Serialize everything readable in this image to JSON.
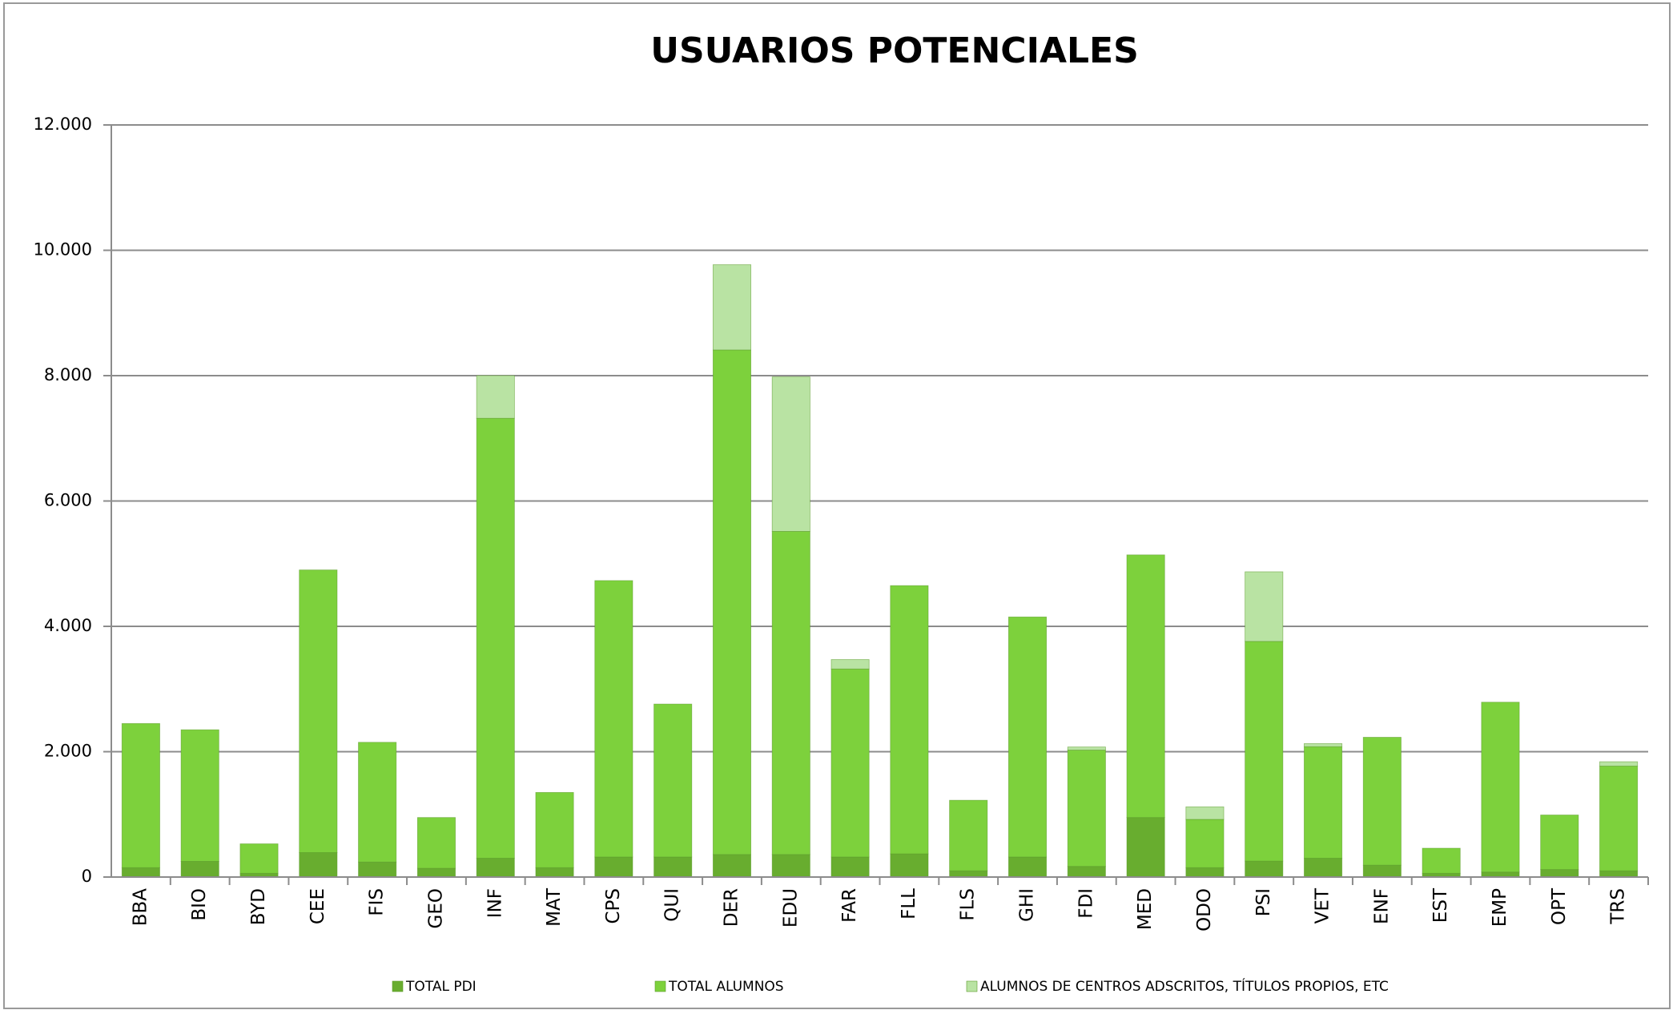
{
  "chart_data": {
    "type": "stacked_bar",
    "title": "USUARIOS POTENCIALES",
    "categories": [
      "BBA",
      "BIO",
      "BYD",
      "CEE",
      "FIS",
      "GEO",
      "INF",
      "MAT",
      "CPS",
      "QUI",
      "DER",
      "EDU",
      "FAR",
      "FLL",
      "FLS",
      "GHI",
      "FDI",
      "MED",
      "ODO",
      "PSI",
      "VET",
      "ENF",
      "EST",
      "EMP",
      "OPT",
      "TRS"
    ],
    "series": [
      {
        "name": "TOTAL PDI",
        "color": "#68ad2f",
        "values": [
          150,
          250,
          60,
          390,
          240,
          140,
          300,
          150,
          320,
          320,
          360,
          360,
          320,
          370,
          100,
          320,
          170,
          950,
          150,
          255,
          300,
          190,
          60,
          80,
          120,
          100
        ]
      },
      {
        "name": "TOTAL ALUMNOS",
        "color": "#7dd13c",
        "values": [
          2300,
          2100,
          470,
          4510,
          1910,
          810,
          7020,
          1200,
          4410,
          2440,
          8050,
          5155,
          3000,
          4280,
          1125,
          3830,
          1855,
          4190,
          770,
          3505,
          1780,
          2040,
          400,
          2710,
          870,
          1670
        ]
      },
      {
        "name": "ALUMNOS DE CENTROS ADSCRITOS, TÍTULOS PROPIOS, ETC",
        "color": "#b9e3a3",
        "values": [
          0,
          0,
          0,
          0,
          0,
          0,
          680,
          0,
          0,
          0,
          1360,
          2465,
          150,
          0,
          0,
          0,
          50,
          0,
          200,
          1110,
          50,
          0,
          0,
          0,
          0,
          70
        ]
      }
    ],
    "ylim": [
      0,
      12000
    ],
    "yticks": [
      0,
      {
        "value": 2000,
        "label": "2.000"
      },
      {
        "value": 4000,
        "label": "4.000"
      },
      {
        "value": 6000,
        "label": "6.000"
      },
      {
        "value": 8000,
        "label": "8.000"
      },
      {
        "value": 10000,
        "label": "10.000"
      },
      {
        "value": 12000,
        "label": "12.000"
      }
    ],
    "grid": true,
    "legend": "bottom"
  }
}
